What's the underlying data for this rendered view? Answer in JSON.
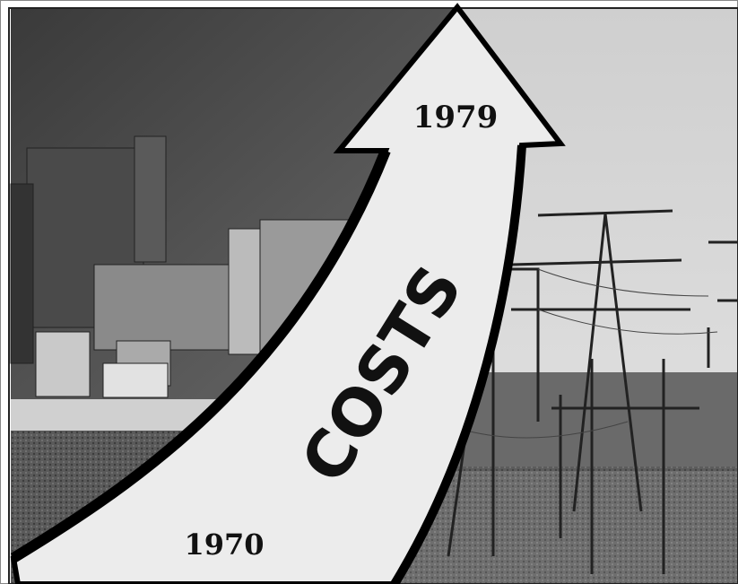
{
  "arrow": {
    "top_label": "1979",
    "middle_label": "COSTS",
    "bottom_label": "1970"
  }
}
